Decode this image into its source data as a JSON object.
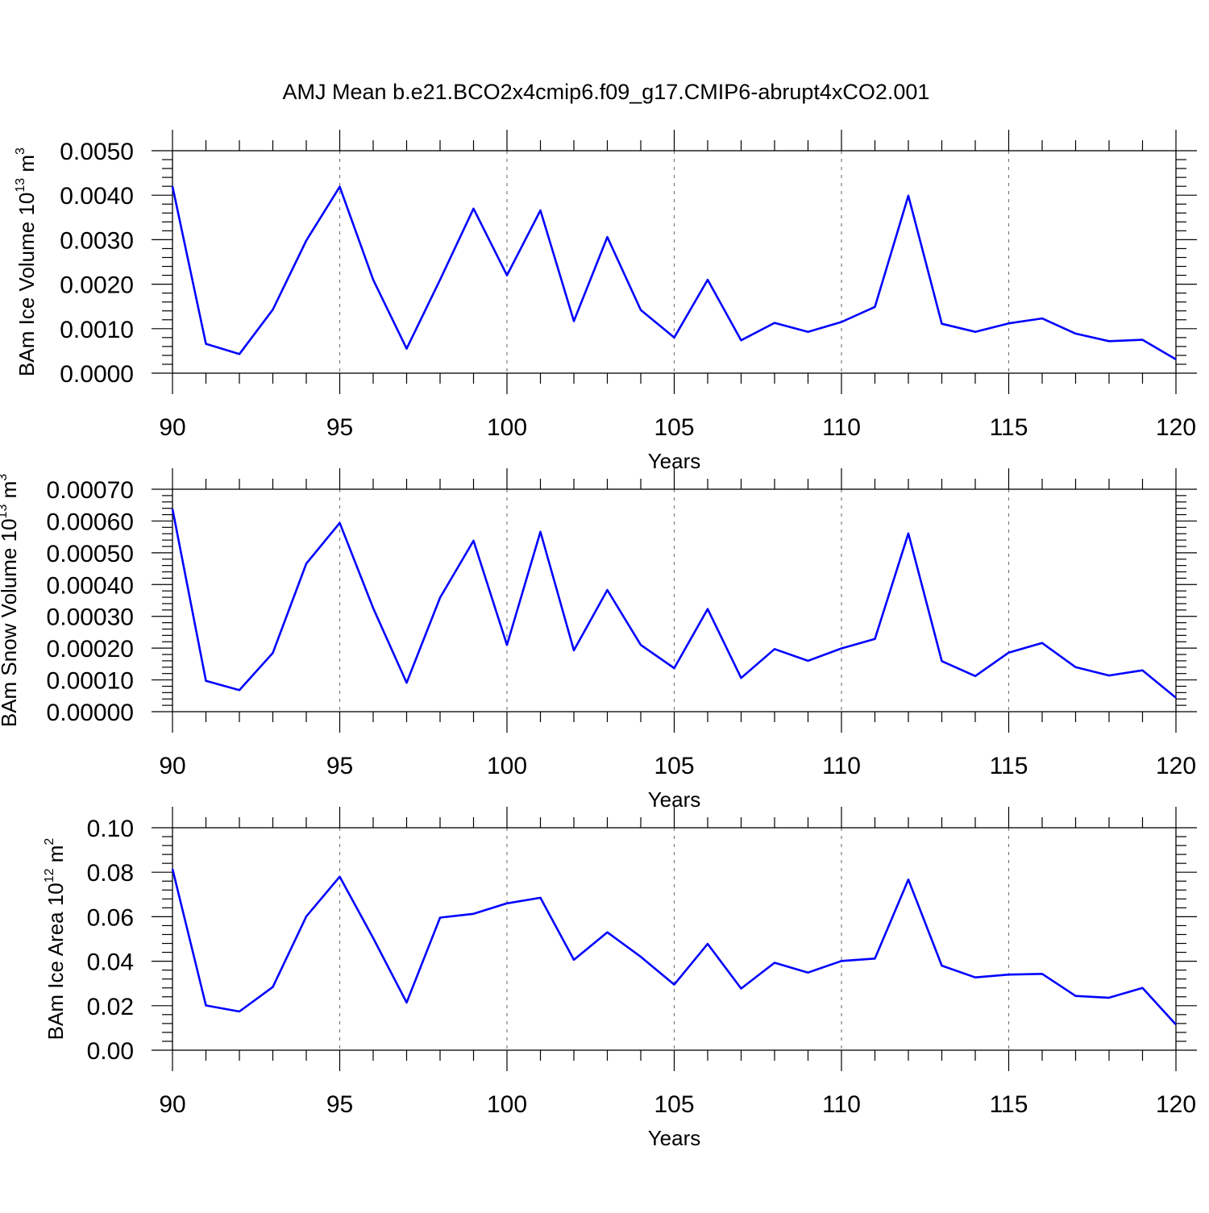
{
  "title": "AMJ Mean b.e21.BCO2x4cmip6.f09_g17.CMIP6-abrupt4xCO2.001",
  "chart_data": [
    {
      "type": "line",
      "name": "ice-volume",
      "ylabel": "BAm Ice Volume 10",
      "ylabel_exp": "13",
      "ylabel_unit": " m",
      "ylabel_unit_exp": "3",
      "xlabel": "Years",
      "xlim": [
        90,
        120
      ],
      "ylim": [
        0,
        0.005
      ],
      "xticks": [
        "90",
        "95",
        "100",
        "105",
        "110",
        "115",
        "120"
      ],
      "yticks": [
        "0.0000",
        "0.0010",
        "0.0020",
        "0.0030",
        "0.0040",
        "0.0050"
      ],
      "x": [
        90,
        91,
        92,
        93,
        94,
        95,
        96,
        97,
        98,
        99,
        100,
        101,
        102,
        103,
        104,
        105,
        106,
        107,
        108,
        109,
        110,
        111,
        112,
        113,
        114,
        115,
        116,
        117,
        118,
        119,
        120
      ],
      "values": [
        0.0042,
        0.00066,
        0.00043,
        0.00143,
        0.00298,
        0.00419,
        0.0021,
        0.00055,
        0.0021,
        0.0037,
        0.0022,
        0.00366,
        0.00117,
        0.00306,
        0.00142,
        0.0008,
        0.0021,
        0.00074,
        0.00113,
        0.00093,
        0.00115,
        0.00149,
        0.00399,
        0.00111,
        0.00093,
        0.00112,
        0.00123,
        0.00089,
        0.00072,
        0.00075,
        0.00031
      ]
    },
    {
      "type": "line",
      "name": "snow-volume",
      "ylabel": "BAm Snow Volume 10",
      "ylabel_exp": "13",
      "ylabel_unit": " m",
      "ylabel_unit_exp": "3",
      "xlabel": "Years",
      "xlim": [
        90,
        120
      ],
      "ylim": [
        0,
        0.0007
      ],
      "xticks": [
        "90",
        "95",
        "100",
        "105",
        "110",
        "115",
        "120"
      ],
      "yticks": [
        "0.00000",
        "0.00010",
        "0.00020",
        "0.00030",
        "0.00040",
        "0.00050",
        "0.00060",
        "0.00070"
      ],
      "x": [
        90,
        91,
        92,
        93,
        94,
        95,
        96,
        97,
        98,
        99,
        100,
        101,
        102,
        103,
        104,
        105,
        106,
        107,
        108,
        109,
        110,
        111,
        112,
        113,
        114,
        115,
        116,
        117,
        118,
        119,
        120
      ],
      "values": [
        0.000638,
        9.7e-05,
        6.8e-05,
        0.000185,
        0.000466,
        0.000594,
        0.000326,
        9.1e-05,
        0.000359,
        0.000538,
        0.00021,
        0.000566,
        0.000193,
        0.000383,
        0.00021,
        0.000137,
        0.000323,
        0.000106,
        0.000197,
        0.00016,
        0.000199,
        0.000229,
        0.000561,
        0.000159,
        0.000112,
        0.000186,
        0.000216,
        0.00014,
        0.000114,
        0.00013,
        4.4e-05
      ]
    },
    {
      "type": "line",
      "name": "ice-area",
      "ylabel": "BAm Ice Area 10",
      "ylabel_exp": "12",
      "ylabel_unit": " m",
      "ylabel_unit_exp": "2",
      "xlabel": "Years",
      "xlim": [
        90,
        120
      ],
      "ylim": [
        0,
        0.1
      ],
      "xticks": [
        "90",
        "95",
        "100",
        "105",
        "110",
        "115",
        "120"
      ],
      "yticks": [
        "0.00",
        "0.02",
        "0.04",
        "0.06",
        "0.08",
        "0.10"
      ],
      "x": [
        90,
        91,
        92,
        93,
        94,
        95,
        96,
        97,
        98,
        99,
        100,
        101,
        102,
        103,
        104,
        105,
        106,
        107,
        108,
        109,
        110,
        111,
        112,
        113,
        114,
        115,
        116,
        117,
        118,
        119,
        120
      ],
      "values": [
        0.0815,
        0.0201,
        0.0174,
        0.0284,
        0.0601,
        0.078,
        0.0504,
        0.0214,
        0.0596,
        0.0613,
        0.066,
        0.0685,
        0.0406,
        0.053,
        0.042,
        0.0295,
        0.0478,
        0.0277,
        0.0393,
        0.0349,
        0.0401,
        0.0412,
        0.0767,
        0.038,
        0.0327,
        0.034,
        0.0343,
        0.0244,
        0.0236,
        0.028,
        0.0115
      ]
    }
  ]
}
